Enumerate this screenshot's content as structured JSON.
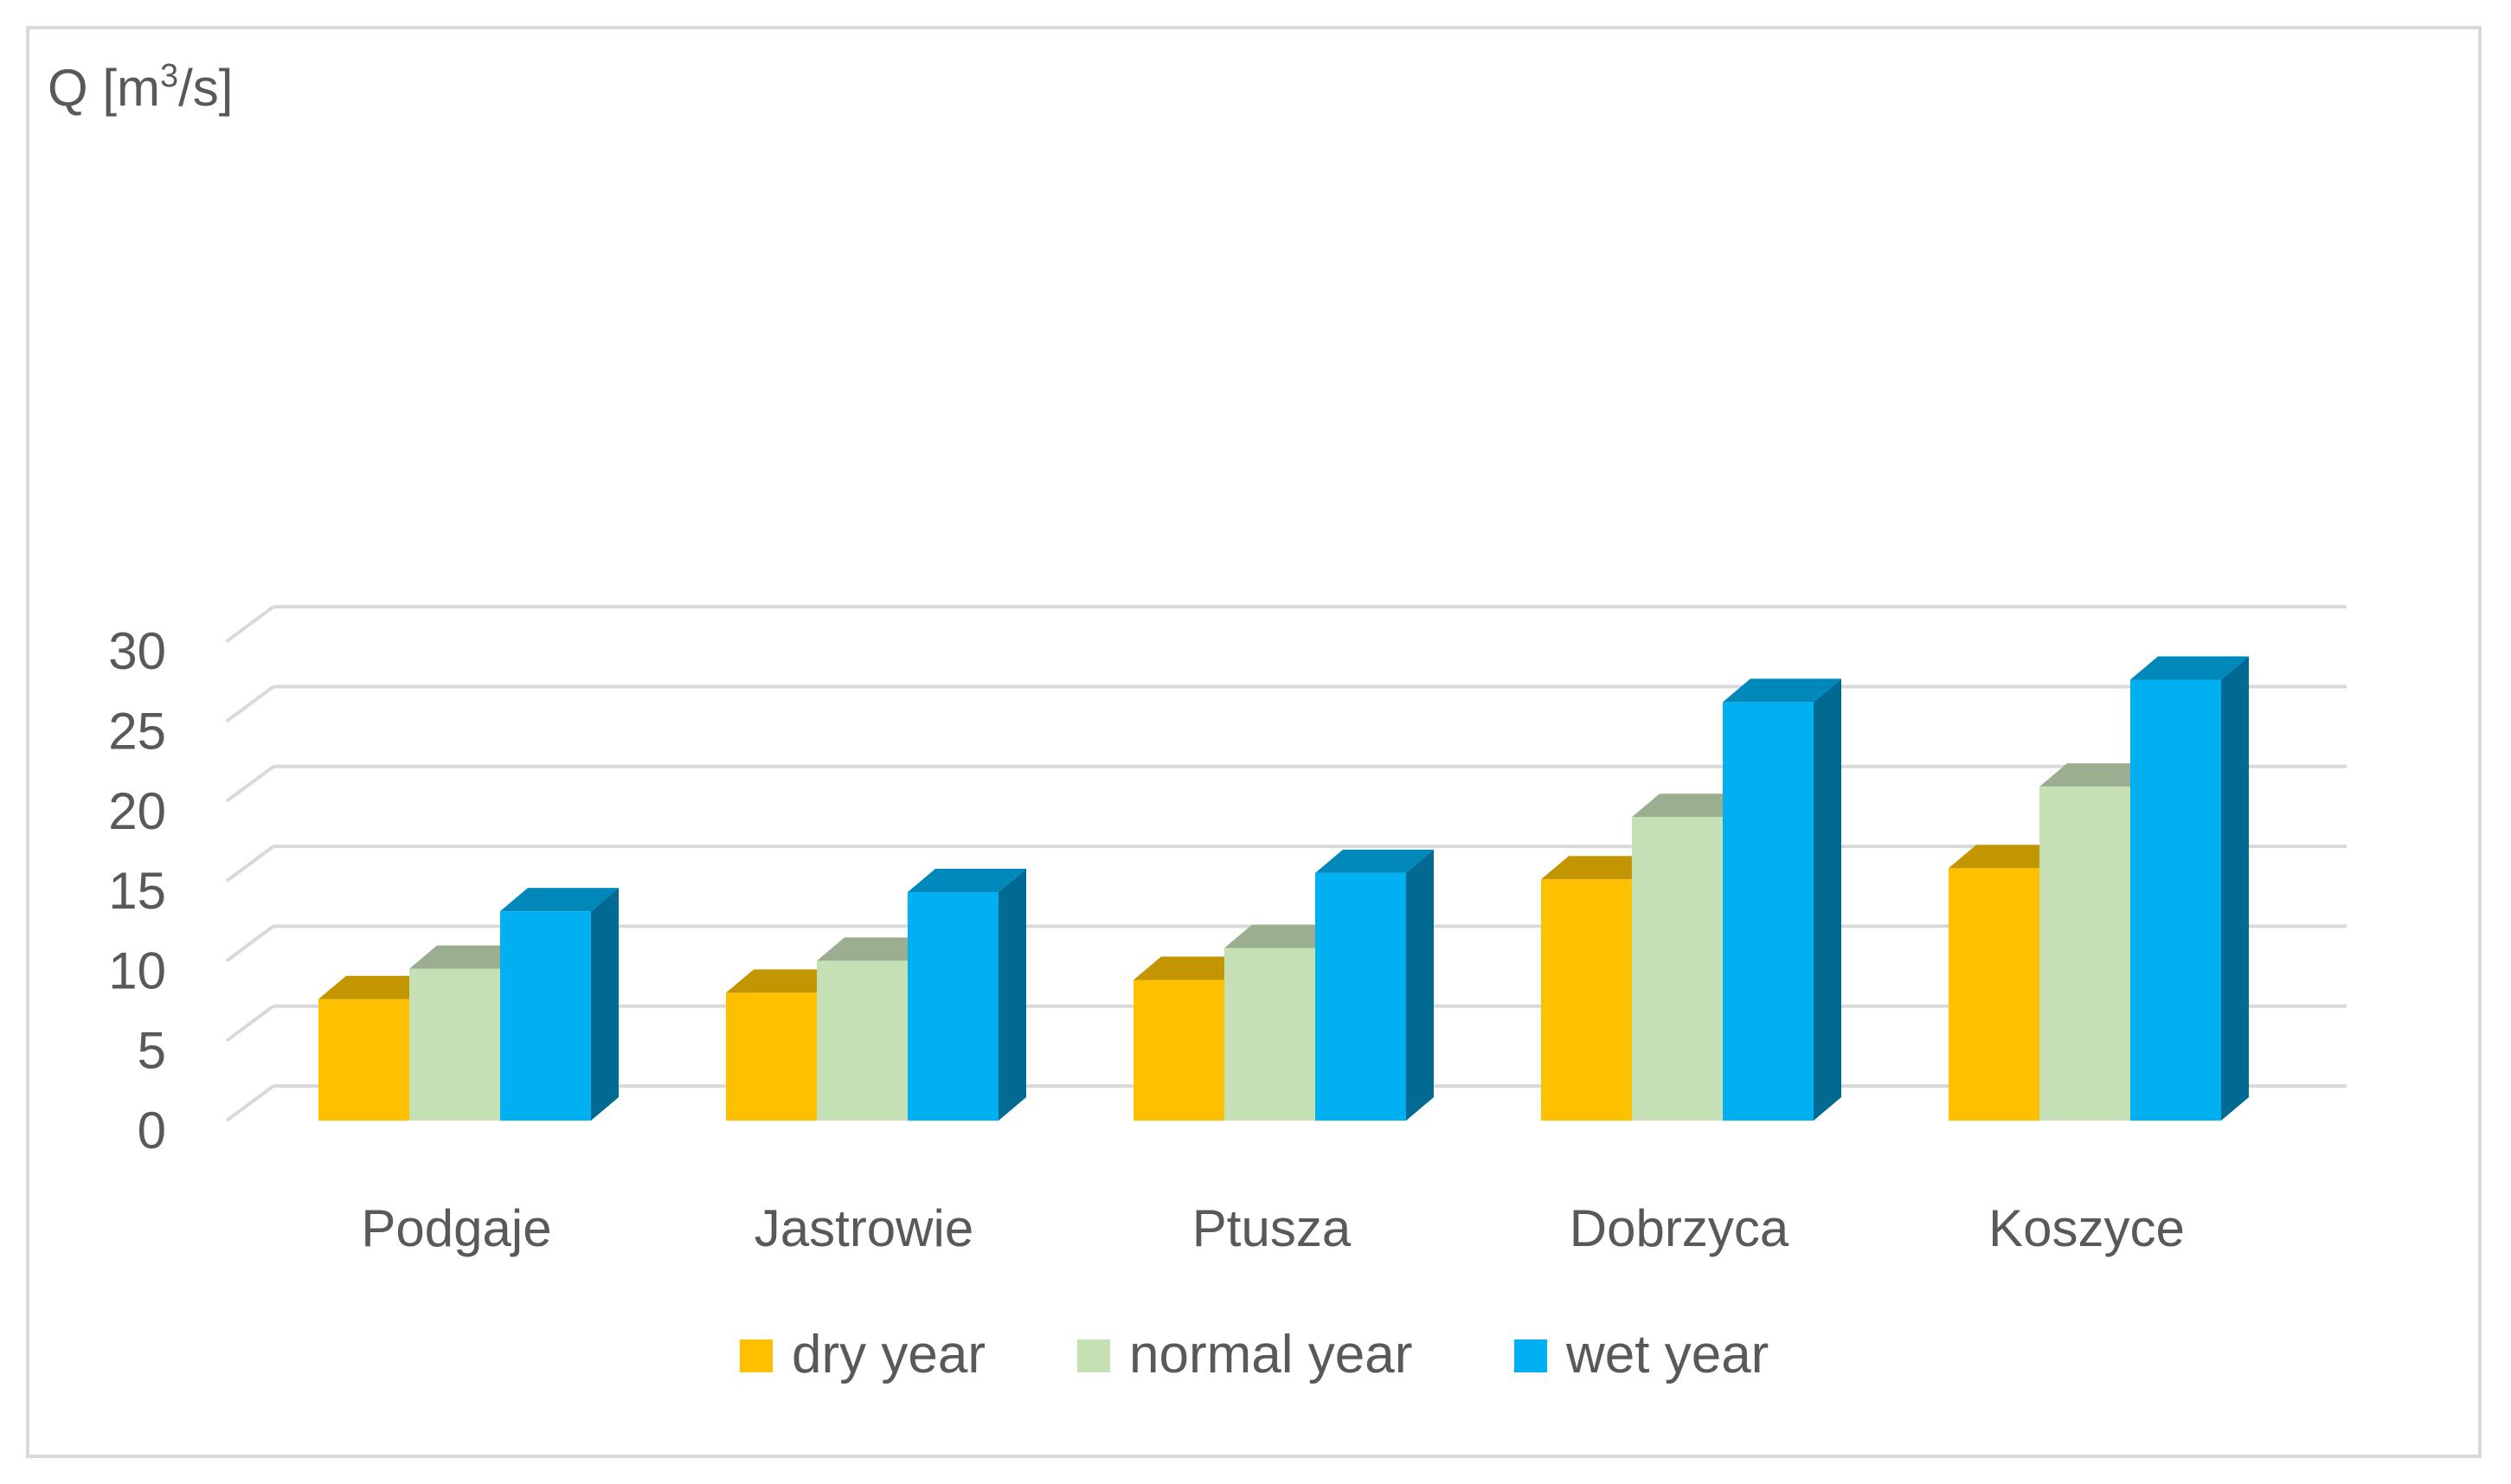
{
  "chart_data": {
    "type": "bar",
    "style": "3d-clustered-column",
    "title": "",
    "ylabel_prefix": "Q [m",
    "ylabel_sup": "3",
    "ylabel_suffix": "/s]",
    "xlabel": "",
    "ylim": [
      0,
      30
    ],
    "yticks": [
      0,
      5,
      10,
      15,
      20,
      25,
      30
    ],
    "grid": true,
    "legend_position": "bottom",
    "categories": [
      "Podgaje",
      "Jastrowie",
      "Ptusza",
      "Dobrzyca",
      "Koszyce"
    ],
    "series": [
      {
        "name": "dry year",
        "color": "#FFC000",
        "top_color": "#C39500",
        "side_color": "#B38600",
        "values": [
          7.6,
          8.0,
          8.8,
          15.1,
          15.8
        ]
      },
      {
        "name": "normal year",
        "color": "#C5E0B4",
        "top_color": "#9BAE8F",
        "side_color": "#A6BC98",
        "values": [
          9.5,
          10.0,
          10.8,
          19.0,
          20.9
        ]
      },
      {
        "name": "wet year",
        "color": "#00B0F0",
        "top_color": "#0088BB",
        "side_color": "#006A92",
        "values": [
          13.1,
          14.3,
          15.5,
          26.2,
          27.6
        ]
      }
    ]
  }
}
